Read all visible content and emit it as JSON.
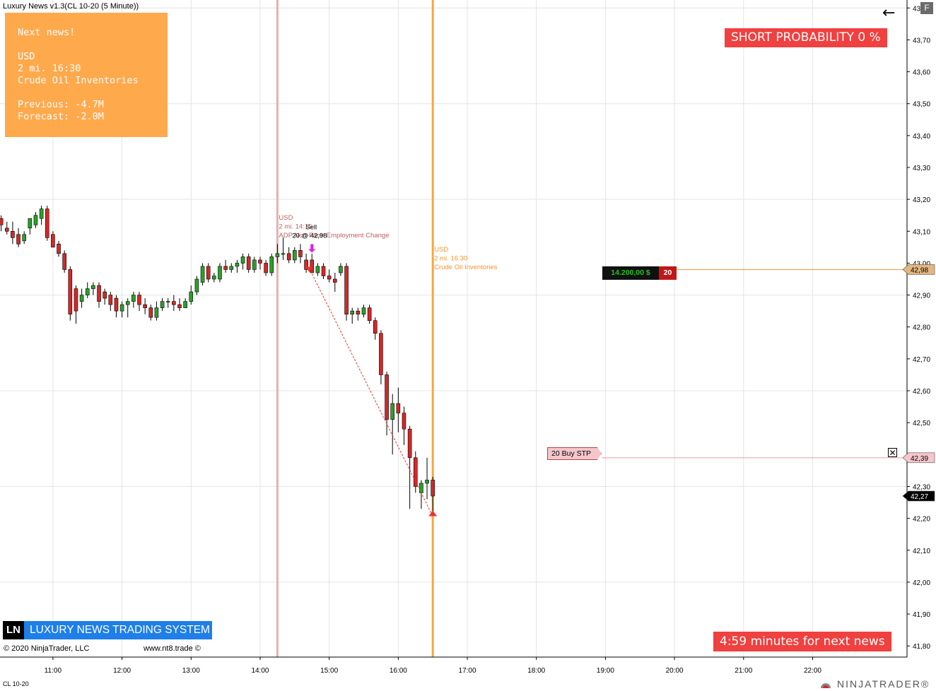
{
  "window": {
    "title": "Luxury News v1.3(CL 10-20 (5 Minute))",
    "f_button": "F"
  },
  "news_panel": {
    "heading": "Next news!",
    "currency": "USD",
    "time": "2 mi. 16:30",
    "event": "Crude Oil Inventories",
    "previous": "Previous: -4.7M",
    "forecast": "Forecast: -2.0M",
    "background": "#ffa94d"
  },
  "short_probability": "SHORT PROBABILITY 0 %",
  "next_news_timer": "4:59 minutes for next news",
  "branding": {
    "logo": "LN",
    "title": "LUXURY NEWS TRADING SYSTEM",
    "copyright": "© 2020 NinjaTrader, LLC",
    "website": "www.nt8.trade ©",
    "instrument": "CL 10-20",
    "brand_name": "NINJATRADER®"
  },
  "news_lines": [
    {
      "time": "14:15",
      "color": "#e8b0b0",
      "label_lines": [
        "USD",
        "2 mi. 14:15",
        "ADP Non-Farm Employment Change"
      ],
      "label_color": "#c06060"
    },
    {
      "time": "16:30",
      "color": "#f5a742",
      "label_lines": [
        "USD",
        "2 mi. 16:30",
        "Crude Oil Inventories"
      ],
      "label_color": "#f0962f"
    }
  ],
  "trade": {
    "entry_label": "Sell",
    "entry_fill": "20 @ 42,98",
    "entry_price": 42.98,
    "stop_price": 42.39,
    "last_price": 42.27
  },
  "position": {
    "pnl": "14.200,00 $",
    "qty": "20",
    "price_label": "42,98"
  },
  "stop_order": {
    "label": "20  Buy STP",
    "price_label": "42,39",
    "cancel_icon": "close-x-icon"
  },
  "last_price_label": "42,27",
  "chart_data": {
    "type": "candlestick",
    "interval_minutes": 5,
    "x_tick_labels": [
      "11:00",
      "12:00",
      "13:00",
      "14:00",
      "15:00",
      "16:00",
      "17:00",
      "18:00",
      "19:00",
      "20:00",
      "21:00",
      "22:00"
    ],
    "y_tick_labels": [
      "43,80",
      "43,70",
      "43,60",
      "43,50",
      "43,40",
      "43,30",
      "43,20",
      "43,10",
      "43,00",
      "42,90",
      "42,80",
      "42,70",
      "42,60",
      "42,50",
      "42,40",
      "42,30",
      "42,20",
      "42,10",
      "42,00",
      "41,90",
      "41,80"
    ],
    "ylim": [
      41.765,
      43.825
    ],
    "xlim": [
      "10:14",
      "23:22"
    ],
    "grid": true,
    "up_color": "#2ca02c",
    "down_color": "#d62728",
    "candles": [
      {
        "t": "10:15",
        "o": 43.14,
        "h": 43.15,
        "l": 43.1,
        "c": 43.12
      },
      {
        "t": "10:20",
        "o": 43.11,
        "h": 43.13,
        "l": 43.09,
        "c": 43.1
      },
      {
        "t": "10:25",
        "o": 43.1,
        "h": 43.13,
        "l": 43.06,
        "c": 43.08
      },
      {
        "t": "10:30",
        "o": 43.09,
        "h": 43.11,
        "l": 43.05,
        "c": 43.06
      },
      {
        "t": "10:35",
        "o": 43.07,
        "h": 43.1,
        "l": 43.06,
        "c": 43.09
      },
      {
        "t": "10:40",
        "o": 43.11,
        "h": 43.14,
        "l": 43.09,
        "c": 43.14
      },
      {
        "t": "10:45",
        "o": 43.12,
        "h": 43.16,
        "l": 43.11,
        "c": 43.15
      },
      {
        "t": "10:50",
        "o": 43.14,
        "h": 43.18,
        "l": 43.12,
        "c": 43.17
      },
      {
        "t": "10:55",
        "o": 43.17,
        "h": 43.18,
        "l": 43.07,
        "c": 43.08
      },
      {
        "t": "11:00",
        "o": 43.09,
        "h": 43.1,
        "l": 43.05,
        "c": 43.05
      },
      {
        "t": "11:05",
        "o": 43.06,
        "h": 43.07,
        "l": 43.02,
        "c": 43.03
      },
      {
        "t": "11:10",
        "o": 43.03,
        "h": 43.04,
        "l": 42.97,
        "c": 42.98
      },
      {
        "t": "11:15",
        "o": 42.98,
        "h": 42.99,
        "l": 42.82,
        "c": 42.84
      },
      {
        "t": "11:20",
        "o": 42.92,
        "h": 42.93,
        "l": 42.81,
        "c": 42.85
      },
      {
        "t": "11:25",
        "o": 42.88,
        "h": 42.92,
        "l": 42.86,
        "c": 42.9
      },
      {
        "t": "11:30",
        "o": 42.9,
        "h": 42.94,
        "l": 42.89,
        "c": 42.92
      },
      {
        "t": "11:35",
        "o": 42.92,
        "h": 42.94,
        "l": 42.9,
        "c": 42.93
      },
      {
        "t": "11:40",
        "o": 42.93,
        "h": 42.94,
        "l": 42.86,
        "c": 42.88
      },
      {
        "t": "11:45",
        "o": 42.91,
        "h": 42.92,
        "l": 42.87,
        "c": 42.89
      },
      {
        "t": "11:50",
        "o": 42.9,
        "h": 42.91,
        "l": 42.85,
        "c": 42.87
      },
      {
        "t": "11:55",
        "o": 42.89,
        "h": 42.9,
        "l": 42.83,
        "c": 42.85
      },
      {
        "t": "12:00",
        "o": 42.85,
        "h": 42.88,
        "l": 42.83,
        "c": 42.87
      },
      {
        "t": "12:05",
        "o": 42.87,
        "h": 42.89,
        "l": 42.83,
        "c": 42.88
      },
      {
        "t": "12:10",
        "o": 42.88,
        "h": 42.91,
        "l": 42.86,
        "c": 42.9
      },
      {
        "t": "12:15",
        "o": 42.9,
        "h": 42.91,
        "l": 42.85,
        "c": 42.87
      },
      {
        "t": "12:20",
        "o": 42.87,
        "h": 42.89,
        "l": 42.84,
        "c": 42.86
      },
      {
        "t": "12:25",
        "o": 42.86,
        "h": 42.87,
        "l": 42.82,
        "c": 42.83
      },
      {
        "t": "12:30",
        "o": 42.83,
        "h": 42.88,
        "l": 42.82,
        "c": 42.86
      },
      {
        "t": "12:35",
        "o": 42.86,
        "h": 42.89,
        "l": 42.85,
        "c": 42.88
      },
      {
        "t": "12:40",
        "o": 42.88,
        "h": 42.89,
        "l": 42.86,
        "c": 42.88
      },
      {
        "t": "12:45",
        "o": 42.88,
        "h": 42.9,
        "l": 42.85,
        "c": 42.87
      },
      {
        "t": "12:50",
        "o": 42.87,
        "h": 42.89,
        "l": 42.85,
        "c": 42.86
      },
      {
        "t": "12:55",
        "o": 42.86,
        "h": 42.89,
        "l": 42.86,
        "c": 42.88
      },
      {
        "t": "13:00",
        "o": 42.88,
        "h": 42.93,
        "l": 42.87,
        "c": 42.91
      },
      {
        "t": "13:05",
        "o": 42.91,
        "h": 42.96,
        "l": 42.9,
        "c": 42.95
      },
      {
        "t": "13:10",
        "o": 42.94,
        "h": 43.0,
        "l": 42.93,
        "c": 42.99
      },
      {
        "t": "13:15",
        "o": 42.99,
        "h": 43.0,
        "l": 42.94,
        "c": 42.95
      },
      {
        "t": "13:20",
        "o": 42.95,
        "h": 42.97,
        "l": 42.94,
        "c": 42.96
      },
      {
        "t": "13:25",
        "o": 42.95,
        "h": 43.0,
        "l": 42.94,
        "c": 42.99
      },
      {
        "t": "13:30",
        "o": 42.99,
        "h": 43.01,
        "l": 42.97,
        "c": 42.98
      },
      {
        "t": "13:35",
        "o": 42.98,
        "h": 43.0,
        "l": 42.97,
        "c": 42.99
      },
      {
        "t": "13:40",
        "o": 42.99,
        "h": 43.01,
        "l": 42.97,
        "c": 43.0
      },
      {
        "t": "13:45",
        "o": 43.0,
        "h": 43.03,
        "l": 42.98,
        "c": 43.02
      },
      {
        "t": "13:50",
        "o": 43.02,
        "h": 43.03,
        "l": 42.97,
        "c": 42.98
      },
      {
        "t": "13:55",
        "o": 42.98,
        "h": 43.02,
        "l": 42.97,
        "c": 43.01
      },
      {
        "t": "14:00",
        "o": 43.01,
        "h": 43.02,
        "l": 42.98,
        "c": 43.0
      },
      {
        "t": "14:05",
        "o": 43.0,
        "h": 43.01,
        "l": 42.96,
        "c": 42.97
      },
      {
        "t": "14:10",
        "o": 42.97,
        "h": 43.03,
        "l": 42.96,
        "c": 43.02
      },
      {
        "t": "14:15",
        "o": 43.02,
        "h": 43.06,
        "l": 43.0,
        "c": 43.03
      },
      {
        "t": "14:20",
        "o": 43.03,
        "h": 43.08,
        "l": 43.01,
        "c": 43.03
      },
      {
        "t": "14:25",
        "o": 43.03,
        "h": 43.05,
        "l": 43.0,
        "c": 43.01
      },
      {
        "t": "14:30",
        "o": 43.01,
        "h": 43.05,
        "l": 43.0,
        "c": 43.04
      },
      {
        "t": "14:35",
        "o": 43.04,
        "h": 43.06,
        "l": 43.0,
        "c": 43.02
      },
      {
        "t": "14:40",
        "o": 43.01,
        "h": 43.03,
        "l": 42.97,
        "c": 42.98
      },
      {
        "t": "14:45",
        "o": 43.01,
        "h": 43.03,
        "l": 42.97,
        "c": 42.97
      },
      {
        "t": "14:50",
        "o": 42.97,
        "h": 43.0,
        "l": 42.96,
        "c": 42.99
      },
      {
        "t": "14:55",
        "o": 42.99,
        "h": 43.0,
        "l": 42.95,
        "c": 42.96
      },
      {
        "t": "15:00",
        "o": 42.96,
        "h": 42.98,
        "l": 42.94,
        "c": 42.95
      },
      {
        "t": "15:05",
        "o": 42.95,
        "h": 42.97,
        "l": 42.91,
        "c": 42.94
      },
      {
        "t": "15:10",
        "o": 42.97,
        "h": 43.0,
        "l": 42.96,
        "c": 42.99
      },
      {
        "t": "15:15",
        "o": 42.99,
        "h": 43.0,
        "l": 42.82,
        "c": 42.84
      },
      {
        "t": "15:20",
        "o": 42.84,
        "h": 42.86,
        "l": 42.81,
        "c": 42.85
      },
      {
        "t": "15:25",
        "o": 42.85,
        "h": 42.86,
        "l": 42.82,
        "c": 42.84
      },
      {
        "t": "15:30",
        "o": 42.84,
        "h": 42.87,
        "l": 42.83,
        "c": 42.86
      },
      {
        "t": "15:35",
        "o": 42.86,
        "h": 42.87,
        "l": 42.81,
        "c": 42.82
      },
      {
        "t": "15:40",
        "o": 42.82,
        "h": 42.83,
        "l": 42.76,
        "c": 42.78
      },
      {
        "t": "15:45",
        "o": 42.78,
        "h": 42.79,
        "l": 42.62,
        "c": 42.65
      },
      {
        "t": "15:50",
        "o": 42.65,
        "h": 42.66,
        "l": 42.46,
        "c": 42.51
      },
      {
        "t": "15:55",
        "o": 42.51,
        "h": 42.59,
        "l": 42.4,
        "c": 42.56
      },
      {
        "t": "16:00",
        "o": 42.56,
        "h": 42.61,
        "l": 42.47,
        "c": 42.53
      },
      {
        "t": "16:05",
        "o": 42.53,
        "h": 42.55,
        "l": 42.43,
        "c": 42.48
      },
      {
        "t": "16:10",
        "o": 42.48,
        "h": 42.49,
        "l": 42.23,
        "c": 42.39
      },
      {
        "t": "16:15",
        "o": 42.39,
        "h": 42.41,
        "l": 42.28,
        "c": 42.3
      },
      {
        "t": "16:20",
        "o": 42.28,
        "h": 42.32,
        "l": 42.23,
        "c": 42.31
      },
      {
        "t": "16:25",
        "o": 42.31,
        "h": 42.39,
        "l": 42.26,
        "c": 42.32
      },
      {
        "t": "16:30",
        "o": 42.32,
        "h": 42.33,
        "l": 42.22,
        "c": 42.27
      }
    ]
  }
}
